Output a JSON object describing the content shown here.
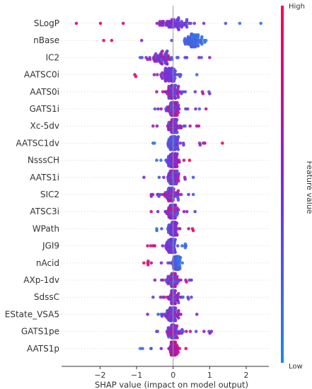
{
  "chart_data": {
    "type": "scatter",
    "subtype": "beeswarm",
    "xlabel": "SHAP value (impact on model output)",
    "xlim": [
      -2.9,
      2.62
    ],
    "xticks": [
      -2,
      -1,
      0,
      1,
      2
    ],
    "xtick_labels": [
      "−2",
      "−1",
      "0",
      "1",
      "2"
    ],
    "colorbar": {
      "title": "Feature value",
      "high_label": "High",
      "low_label": "Low",
      "low_color": "#1e88e5",
      "mid_color": "#7a2bd6",
      "high_color": "#ff0052"
    },
    "features": [
      {
        "name": "SLogP",
        "min": -2.65,
        "max": 2.4,
        "center": 0.0,
        "spread": 0.95,
        "mode": "hl"
      },
      {
        "name": "nBase",
        "min": -1.9,
        "max": 0.9,
        "center": 0.55,
        "spread": 0.45,
        "mode": "hl"
      },
      {
        "name": "IC2",
        "min": -0.9,
        "max": 1.0,
        "center": -0.3,
        "spread": 0.45,
        "mode": "mix"
      },
      {
        "name": "AATSC0i",
        "min": -1.05,
        "max": 0.65,
        "center": -0.1,
        "spread": 0.4,
        "mode": "hl"
      },
      {
        "name": "AATS0i",
        "min": -0.45,
        "max": 1.0,
        "center": 0.0,
        "spread": 0.3,
        "mode": "mix"
      },
      {
        "name": "GATS1i",
        "min": -0.5,
        "max": 0.9,
        "center": 0.0,
        "spread": 0.3,
        "mode": "mix"
      },
      {
        "name": "Xc-5dv",
        "min": -0.55,
        "max": 0.7,
        "center": 0.0,
        "spread": 0.3,
        "mode": "mix"
      },
      {
        "name": "AATSC1dv",
        "min": -0.55,
        "max": 1.35,
        "center": 0.0,
        "spread": 0.3,
        "mode": "lh"
      },
      {
        "name": "NsssCH",
        "min": -0.45,
        "max": 0.45,
        "center": 0.0,
        "spread": 0.25,
        "mode": "lh"
      },
      {
        "name": "AATS1i",
        "min": -0.8,
        "max": 0.55,
        "center": 0.0,
        "spread": 0.3,
        "mode": "mix"
      },
      {
        "name": "SIC2",
        "min": -0.6,
        "max": 0.55,
        "center": -0.05,
        "spread": 0.3,
        "mode": "mix"
      },
      {
        "name": "ATSC3i",
        "min": -0.6,
        "max": 0.6,
        "center": 0.0,
        "spread": 0.3,
        "mode": "mix"
      },
      {
        "name": "WPath",
        "min": -0.45,
        "max": 0.55,
        "center": 0.0,
        "spread": 0.25,
        "mode": "lh"
      },
      {
        "name": "JGI9",
        "min": -0.7,
        "max": 0.35,
        "center": -0.05,
        "spread": 0.25,
        "mode": "hl"
      },
      {
        "name": "nAcid",
        "min": -0.8,
        "max": 0.25,
        "center": 0.1,
        "spread": 0.2,
        "mode": "hl"
      },
      {
        "name": "AXp-1dv",
        "min": -0.5,
        "max": 0.5,
        "center": 0.0,
        "spread": 0.25,
        "mode": "mix"
      },
      {
        "name": "SdssC",
        "min": -0.55,
        "max": 0.5,
        "center": 0.0,
        "spread": 0.25,
        "mode": "mix"
      },
      {
        "name": "EState_VSA5",
        "min": -0.7,
        "max": 0.65,
        "center": 0.0,
        "spread": 0.3,
        "mode": "mix"
      },
      {
        "name": "GATS1pe",
        "min": -0.45,
        "max": 1.05,
        "center": 0.0,
        "spread": 0.3,
        "mode": "mix"
      },
      {
        "name": "AATS1p",
        "min": -0.9,
        "max": 0.35,
        "center": 0.0,
        "spread": 0.25,
        "mode": "lh"
      }
    ]
  }
}
